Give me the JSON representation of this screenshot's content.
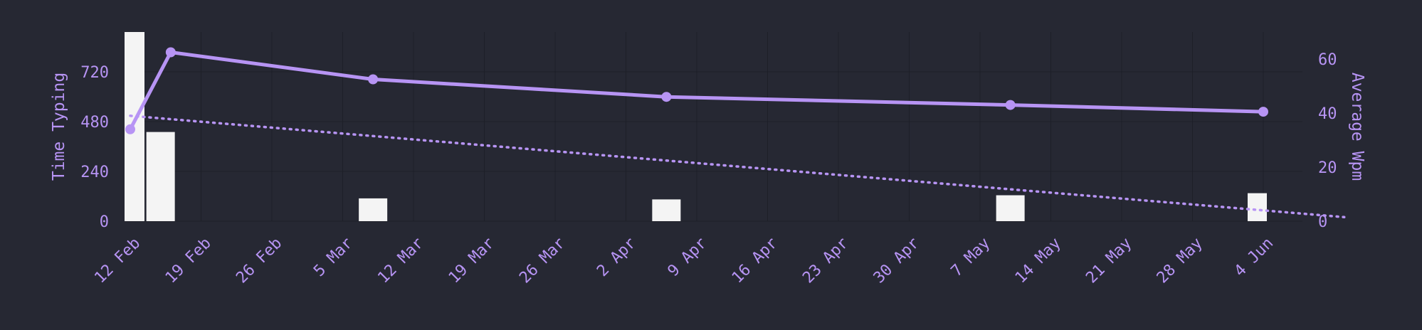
{
  "colors": {
    "background": "#262833",
    "accent": "#b794f4",
    "bar": "#f4f4f4",
    "grid": "#1d1f28"
  },
  "chart_data": {
    "type": "bar+line",
    "xlabel": "",
    "ylabel_left": "Time Typing",
    "ylabel_right": "Average Wpm",
    "x_tick_labels": [
      "12 Feb",
      "19 Feb",
      "26 Feb",
      "5 Mar",
      "12 Mar",
      "19 Mar",
      "26 Mar",
      "2 Apr",
      "9 Apr",
      "16 Apr",
      "23 Apr",
      "30 Apr",
      "7 May",
      "14 May",
      "21 May",
      "28 May",
      "4 Jun"
    ],
    "x_range": [
      "2022-02-12",
      "2022-06-04"
    ],
    "y_left": {
      "ticks": [
        "0",
        "240",
        "480",
        "720"
      ],
      "range": [
        0,
        912
      ]
    },
    "y_right": {
      "ticks": [
        "0",
        "20",
        "40",
        "60"
      ],
      "range": [
        0,
        70
      ]
    },
    "grid": true,
    "series": [
      {
        "name": "Time Typing",
        "kind": "bar",
        "axis": "left",
        "points": [
          {
            "x": "2022-02-12",
            "y": 912
          },
          {
            "x": "2022-02-15",
            "y": 430
          },
          {
            "x": "2022-03-08",
            "y": 110
          },
          {
            "x": "2022-04-06",
            "y": 105
          },
          {
            "x": "2022-05-10",
            "y": 125
          },
          {
            "x": "2022-06-04",
            "y": 135
          }
        ]
      },
      {
        "name": "Average Wpm",
        "kind": "line",
        "axis": "right",
        "points": [
          {
            "x": "2022-02-12",
            "y": 34
          },
          {
            "x": "2022-02-16",
            "y": 62.5
          },
          {
            "x": "2022-03-08",
            "y": 52.5
          },
          {
            "x": "2022-04-06",
            "y": 46
          },
          {
            "x": "2022-05-10",
            "y": 43
          },
          {
            "x": "2022-06-04",
            "y": 40.5
          }
        ]
      },
      {
        "name": "trend",
        "kind": "dotted-line",
        "axis": "right",
        "points": [
          {
            "x": "2022-02-12",
            "y": 39
          },
          {
            "x": "2022-06-12",
            "y": 1.5
          }
        ]
      }
    ]
  }
}
